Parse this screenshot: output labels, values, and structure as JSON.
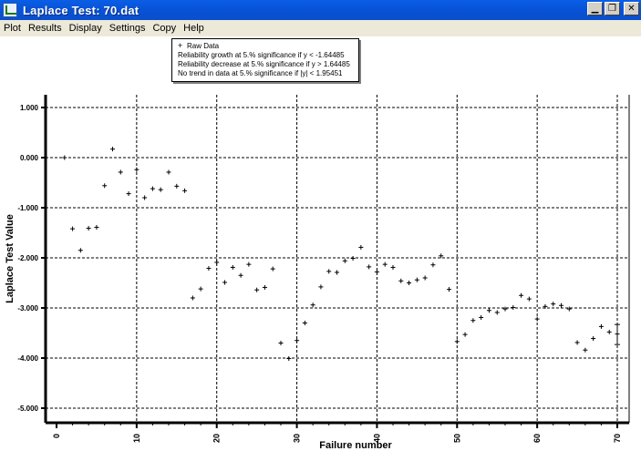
{
  "window": {
    "title": "Laplace Test:   70.dat",
    "minimize_icon": "minimize-icon",
    "restore_icon": "restore-icon",
    "close_icon": "close-icon"
  },
  "menu": {
    "items": [
      "Plot",
      "Results",
      "Display",
      "Settings",
      "Copy",
      "Help"
    ]
  },
  "legend": {
    "entries": [
      {
        "symbol": "+",
        "text": "Raw Data"
      },
      {
        "symbol": "",
        "text": "Reliability growth at 5.% significance if y < -1.64485"
      },
      {
        "symbol": "",
        "text": "Reliability decrease at 5.% significance if y > 1.64485"
      },
      {
        "symbol": "",
        "text": "No trend in data at 5.% significance if |y| < 1.95451"
      }
    ]
  },
  "chart_data": {
    "type": "scatter",
    "xlabel": "Failure number",
    "ylabel": "Laplace Test Value",
    "xlim": [
      0,
      70
    ],
    "ylim": [
      -5,
      1
    ],
    "xticks": [
      0,
      10,
      20,
      30,
      40,
      50,
      60,
      70
    ],
    "yticks": [
      1,
      0,
      -1,
      -2,
      -3,
      -4,
      -5
    ],
    "ytick_labels": [
      "1.000",
      "0.000",
      "-1.000",
      "-2.000",
      "-3.000",
      "-4.000",
      "-5.000"
    ],
    "grid": true,
    "series": [
      {
        "name": "Raw Data",
        "marker": "+",
        "x": [
          1,
          2,
          3,
          4,
          5,
          6,
          7,
          8,
          9,
          10,
          11,
          12,
          13,
          14,
          15,
          16,
          17,
          18,
          19,
          20,
          21,
          22,
          23,
          24,
          25,
          26,
          27,
          28,
          29,
          30,
          31,
          32,
          33,
          34,
          35,
          36,
          37,
          38,
          39,
          40,
          41,
          42,
          43,
          44,
          45,
          46,
          47,
          48,
          49,
          50,
          51,
          52,
          53,
          54,
          55,
          56,
          57,
          58,
          59,
          60,
          61,
          62,
          63,
          64,
          65,
          66,
          67,
          68,
          69,
          70
        ],
        "y": [
          0.0,
          -1.42,
          -1.85,
          -1.41,
          -1.39,
          -0.56,
          0.17,
          -0.29,
          -0.72,
          -0.24,
          -0.8,
          -0.62,
          -0.64,
          -0.29,
          -0.57,
          -0.66,
          -2.8,
          -2.62,
          -2.21,
          -2.09,
          -2.49,
          -2.19,
          -2.35,
          -2.13,
          -2.64,
          -2.59,
          -2.22,
          -3.7,
          -4.01,
          -3.65,
          -3.3,
          -2.94,
          -2.58,
          -2.27,
          -2.29,
          -2.06,
          -2.01,
          -1.79,
          -2.18,
          -2.28,
          -2.13,
          -2.19,
          -2.46,
          -2.5,
          -2.44,
          -2.4,
          -2.14,
          -1.96,
          -2.63,
          -3.67,
          -3.53,
          -3.25,
          -3.19,
          -3.05,
          -3.09,
          -3.02,
          -2.99,
          -2.75,
          -2.82,
          -3.22,
          -2.97,
          -2.92,
          -2.95,
          -3.02,
          -3.69,
          -3.84,
          -3.61,
          -3.37,
          -3.48,
          -3.52
        ]
      }
    ],
    "error_bar": {
      "x": 70,
      "y": -3.52,
      "low": -3.73,
      "high": -3.33
    }
  }
}
